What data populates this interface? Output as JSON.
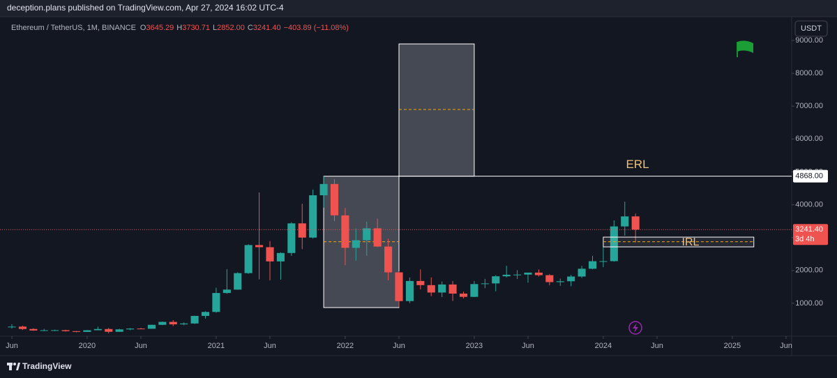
{
  "header": {
    "text": "deception.plans published on TradingView.com, Apr 27, 2024 16:02 UTC-4"
  },
  "footer": {
    "brand": "TradingView"
  },
  "chart_data": {
    "type": "candlestick",
    "legend": {
      "symbol": "Ethereum / TetherUS, 1M, BINANCE",
      "fields": [
        {
          "key": "O",
          "value": "3645.29"
        },
        {
          "key": "H",
          "value": "3730.71"
        },
        {
          "key": "L",
          "value": "2852.00"
        },
        {
          "key": "C",
          "value": "3241.40"
        }
      ],
      "change": "−403.89 (−11.08%)"
    },
    "currency": "USDT",
    "up_color": "#26a69a",
    "down_color": "#ef5350",
    "x": [
      "2019-06",
      "2019-07",
      "2019-08",
      "2019-09",
      "2019-10",
      "2019-11",
      "2019-12",
      "2020-01",
      "2020-02",
      "2020-03",
      "2020-04",
      "2020-05",
      "2020-06",
      "2020-07",
      "2020-08",
      "2020-09",
      "2020-10",
      "2020-11",
      "2020-12",
      "2021-01",
      "2021-02",
      "2021-03",
      "2021-04",
      "2021-05",
      "2021-06",
      "2021-07",
      "2021-08",
      "2021-09",
      "2021-10",
      "2021-11",
      "2021-12",
      "2022-01",
      "2022-02",
      "2022-03",
      "2022-04",
      "2022-05",
      "2022-06",
      "2022-07",
      "2022-08",
      "2022-09",
      "2022-10",
      "2022-11",
      "2022-12",
      "2023-01",
      "2023-02",
      "2023-03",
      "2023-04",
      "2023-05",
      "2023-06",
      "2023-07",
      "2023-08",
      "2023-09",
      "2023-10",
      "2023-11",
      "2023-12",
      "2024-01",
      "2024-02",
      "2024-03",
      "2024-04"
    ],
    "open": [
      268,
      291,
      218,
      172,
      180,
      182,
      152,
      129,
      180,
      217,
      133,
      206,
      231,
      225,
      345,
      434,
      359,
      386,
      616,
      737,
      1314,
      1416,
      1918,
      2773,
      2707,
      2275,
      2531,
      3433,
      3000,
      4288,
      4631,
      3676,
      2688,
      2919,
      3282,
      2727,
      1942,
      1067,
      1679,
      1553,
      1328,
      1572,
      1295,
      1196,
      1585,
      1605,
      1822,
      1869,
      1874,
      1934,
      1856,
      1645,
      1671,
      1815,
      2052,
      2281,
      2283,
      3340,
      3645.29
    ],
    "high": [
      362,
      319,
      239,
      224,
      199,
      195,
      154,
      188,
      288,
      253,
      228,
      245,
      253,
      349,
      446,
      489,
      420,
      623,
      757,
      1476,
      2040,
      1944,
      2798,
      4372,
      2891,
      2551,
      3467,
      4028,
      4460,
      4868,
      4778,
      3900,
      3281,
      3482,
      3580,
      2965,
      1974,
      1785,
      2030,
      1789,
      1664,
      1678,
      1352,
      1680,
      1743,
      1858,
      2141,
      2008,
      1930,
      2029,
      1886,
      1751,
      1865,
      2139,
      2445,
      2717,
      3522,
      4093,
      3730.71
    ],
    "low": [
      231,
      190,
      162,
      152,
      156,
      138,
      117,
      127,
      179,
      86,
      128,
      180,
      211,
      222,
      335,
      308,
      333,
      371,
      536,
      715,
      1289,
      1411,
      1895,
      1728,
      1700,
      1718,
      2444,
      2651,
      2970,
      3910,
      3500,
      2159,
      2300,
      2450,
      2711,
      1700,
      881,
      1006,
      1422,
      1220,
      1190,
      1073,
      1150,
      1190,
      1461,
      1368,
      1785,
      1741,
      1626,
      1816,
      1550,
      1531,
      1521,
      1771,
      2035,
      2100,
      2268,
      3058,
      2852
    ],
    "close": [
      291,
      218,
      172,
      180,
      182,
      152,
      129,
      180,
      217,
      133,
      206,
      231,
      225,
      345,
      434,
      359,
      386,
      616,
      737,
      1314,
      1417,
      1918,
      2773,
      2707,
      2275,
      2531,
      3433,
      3000,
      4288,
      4631,
      3676,
      2688,
      2919,
      3282,
      2727,
      1942,
      1067,
      1679,
      1553,
      1328,
      1572,
      1295,
      1196,
      1585,
      1605,
      1822,
      1869,
      1874,
      1934,
      1856,
      1645,
      1671,
      1815,
      2052,
      2281,
      2283,
      3340,
      3645,
      3241.4
    ],
    "xlim": [
      "2019-06",
      "2025-06"
    ],
    "xticks": [
      {
        "value": "2019-06",
        "label": "Jun"
      },
      {
        "value": "2020-01",
        "label": "2020"
      },
      {
        "value": "2020-06",
        "label": "Jun"
      },
      {
        "value": "2021-01",
        "label": "2021"
      },
      {
        "value": "2021-06",
        "label": "Jun"
      },
      {
        "value": "2022-01",
        "label": "2022"
      },
      {
        "value": "2022-06",
        "label": "Jun"
      },
      {
        "value": "2023-01",
        "label": "2023"
      },
      {
        "value": "2023-06",
        "label": "Jun"
      },
      {
        "value": "2024-01",
        "label": "2024"
      },
      {
        "value": "2024-06",
        "label": "Jun"
      },
      {
        "value": "2025-01",
        "label": "2025"
      },
      {
        "value": "2025-06",
        "label": "Jun"
      }
    ],
    "ylim": [
      0,
      9170
    ],
    "yticks": [
      {
        "value": 1000,
        "label": "1000.00"
      },
      {
        "value": 2000,
        "label": "2000.00"
      },
      {
        "value": 3000,
        "label": "3000.00"
      },
      {
        "value": 4000,
        "label": "4000.00"
      },
      {
        "value": 5000,
        "label": "5000.00"
      },
      {
        "value": 6000,
        "label": "6000.00"
      },
      {
        "value": 7000,
        "label": "7000.00"
      },
      {
        "value": 8000,
        "label": "8000.00"
      },
      {
        "value": 9000,
        "label": "9000.00"
      }
    ],
    "grid": false,
    "boxes": [
      {
        "start": "2021-11",
        "end": "2022-06",
        "low": 870,
        "high": 4868,
        "mid": 2874
      },
      {
        "start": "2022-06",
        "end": "2023-01",
        "low": 4868,
        "high": 8894,
        "mid": 6900
      }
    ],
    "levels": [
      {
        "name": "ERL",
        "value": 4868,
        "label": "4868.00",
        "start": "2022-06"
      }
    ],
    "zones": [
      {
        "name": "IRL",
        "start": "2024-01",
        "end": "2025-03",
        "low": 2717,
        "high": 3014,
        "mid": 2874
      }
    ],
    "last": {
      "value": 3241.4,
      "label": "3241.40",
      "countdown": "3d 4h"
    }
  }
}
